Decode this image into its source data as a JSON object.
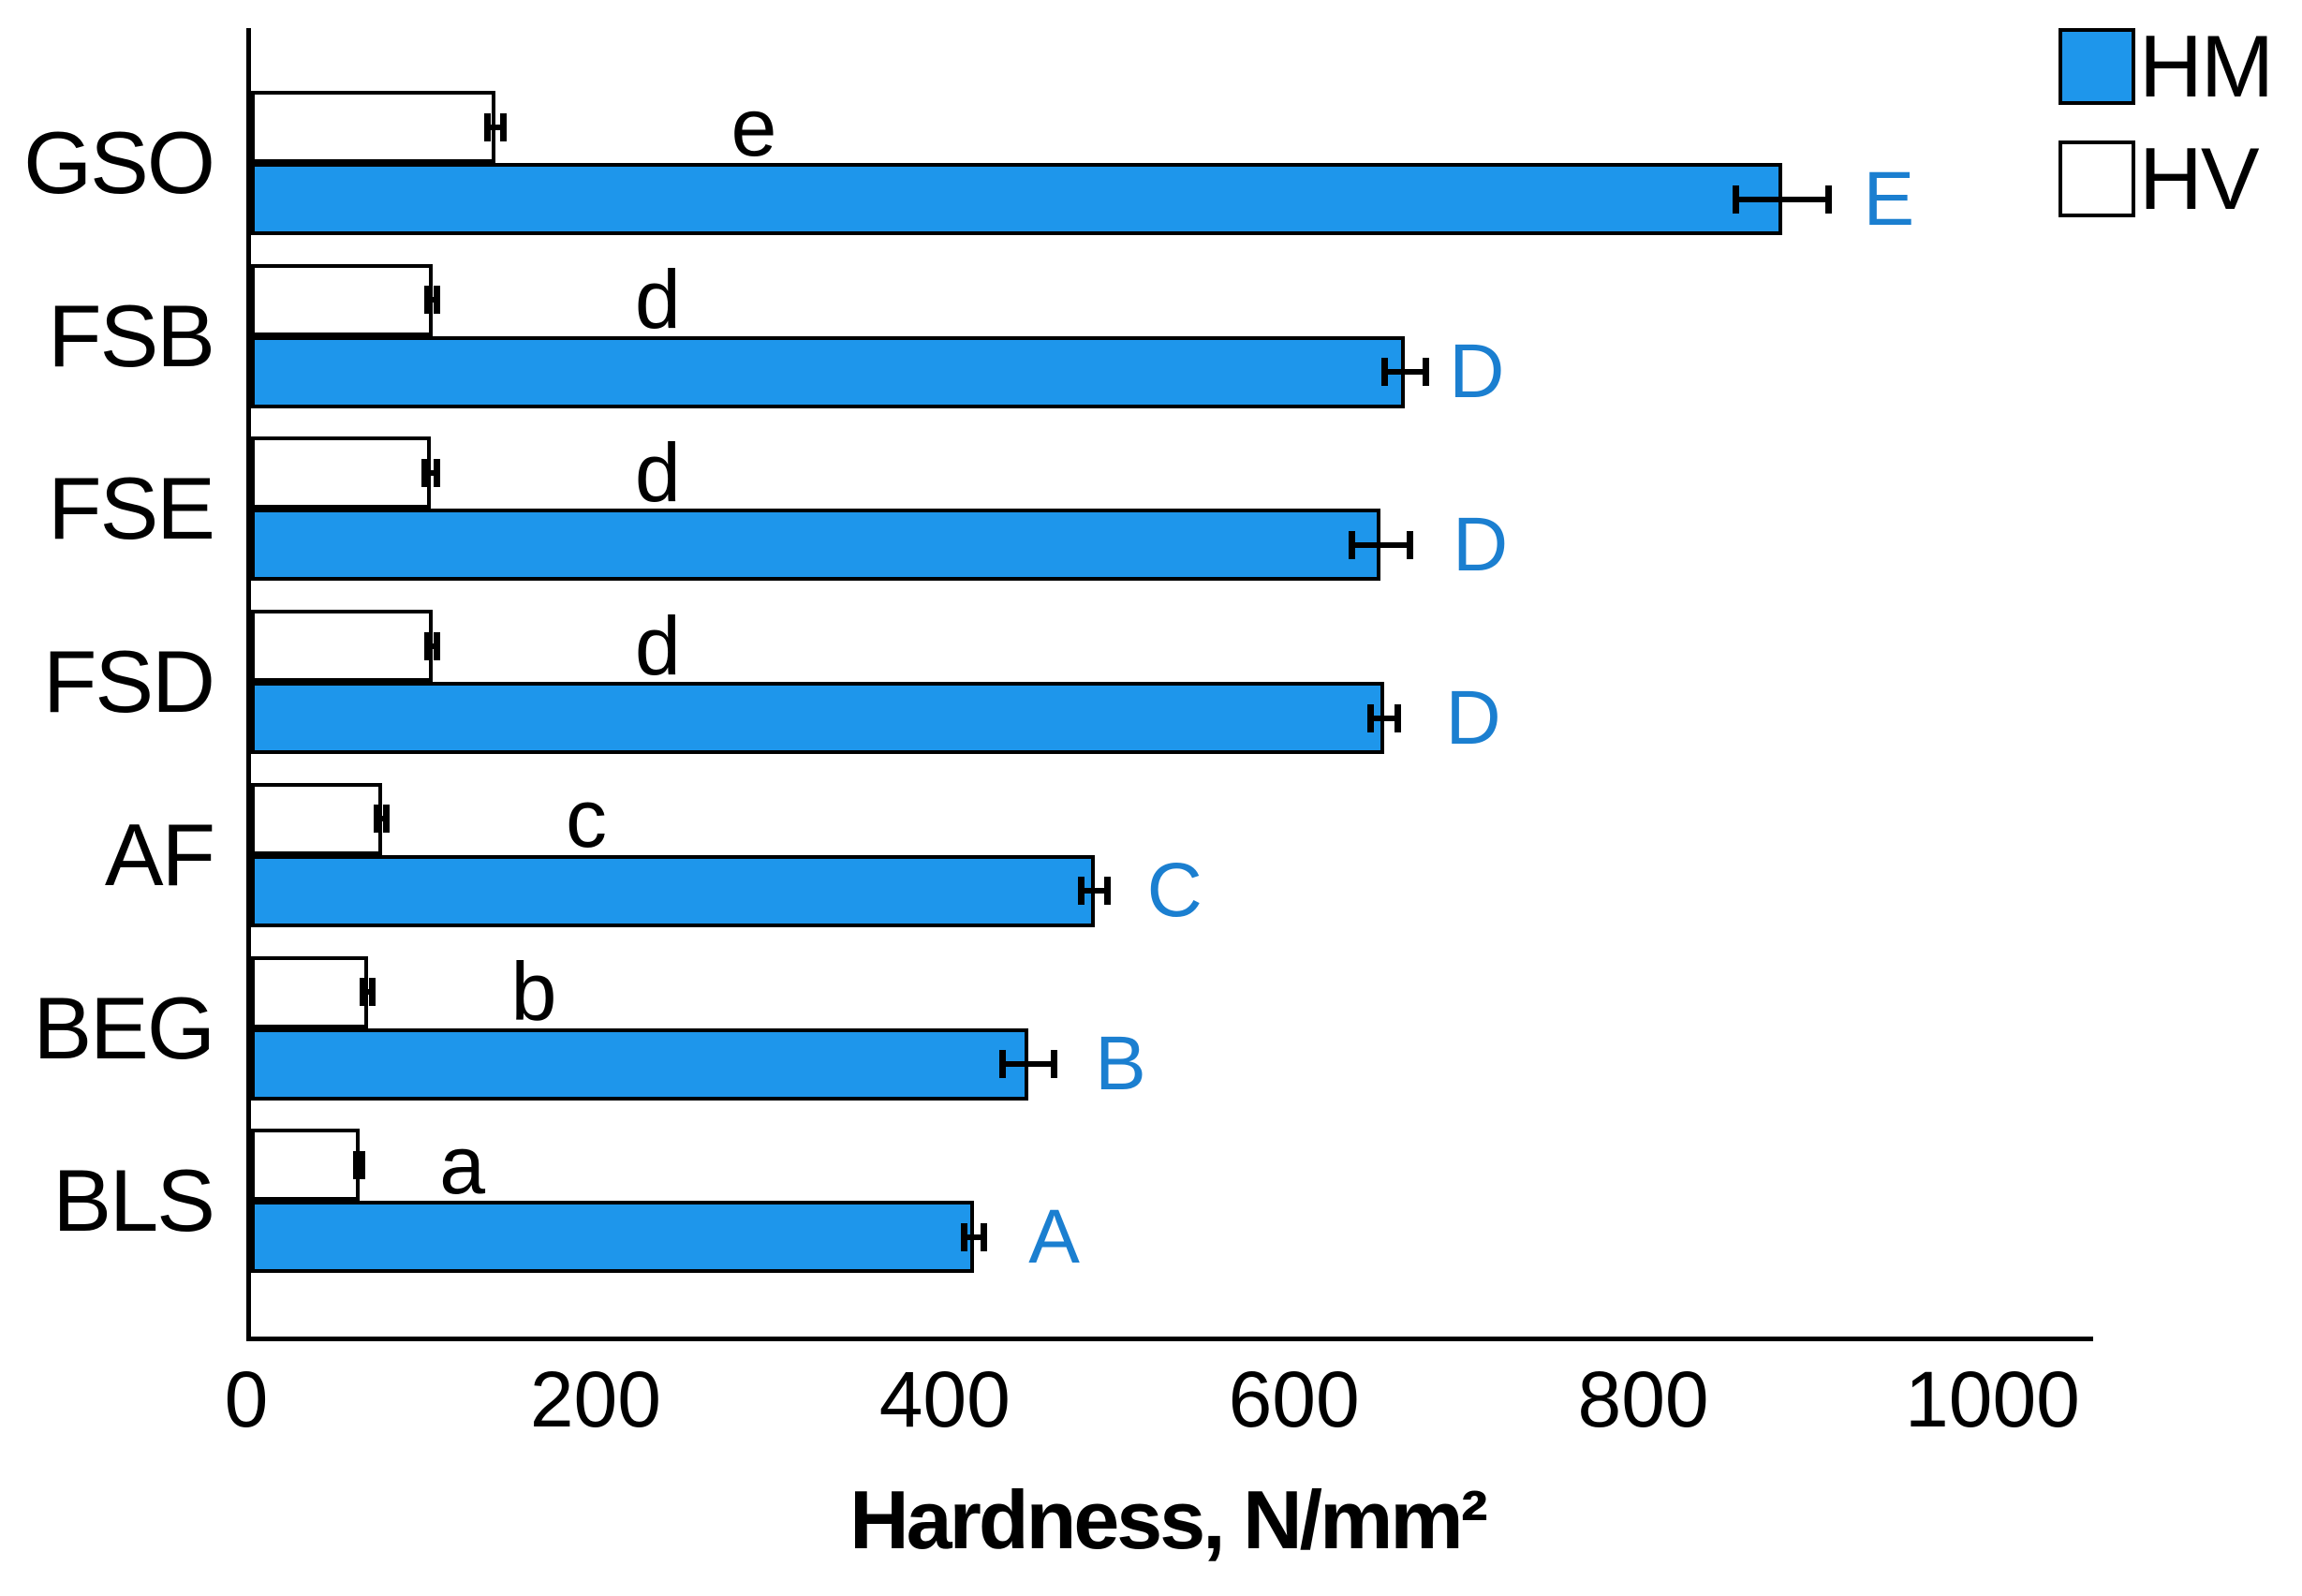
{
  "chart_data": {
    "type": "bar",
    "orientation": "horizontal",
    "title": "",
    "xlabel": "Hardness, N/mm²",
    "ylabel": "",
    "x_ticks": [
      "0",
      "200",
      "400",
      "600",
      "800",
      "1000"
    ],
    "x_tick_values": [
      0,
      200,
      400,
      600,
      800,
      1000
    ],
    "xlim": [
      0,
      1055
    ],
    "grid": false,
    "legend_position": "top-right",
    "categories": [
      "GSO",
      "FSB",
      "FSE",
      "FSD",
      "AF",
      "BEG",
      "BLS"
    ],
    "series": [
      {
        "name": "HM",
        "color": "#1E96EB",
        "bar_border": "#000000",
        "values": [
          877,
          661,
          647,
          649,
          483,
          445,
          414
        ],
        "errors": [
          27,
          12,
          17,
          8,
          8,
          15,
          6
        ],
        "sig_letters": [
          "E",
          "D",
          "D",
          "D",
          "C",
          "B",
          "A"
        ],
        "sig_letter_x": [
          938,
          702,
          704,
          700,
          529,
          498,
          460
        ],
        "sig_letter_color": "#1B7FD0"
      },
      {
        "name": "HV",
        "color": "#FFFFFF",
        "bar_border": "#000000",
        "values": [
          140,
          104,
          103,
          104,
          75,
          67,
          62
        ],
        "errors": [
          5,
          3,
          4,
          3,
          3,
          3,
          2
        ],
        "sig_letters": [
          "e",
          "d",
          "d",
          "d",
          "c",
          "b",
          "a"
        ],
        "sig_letter_x": [
          288,
          233,
          233,
          233,
          192,
          162,
          121
        ],
        "sig_letter_color": "#000000"
      }
    ]
  }
}
